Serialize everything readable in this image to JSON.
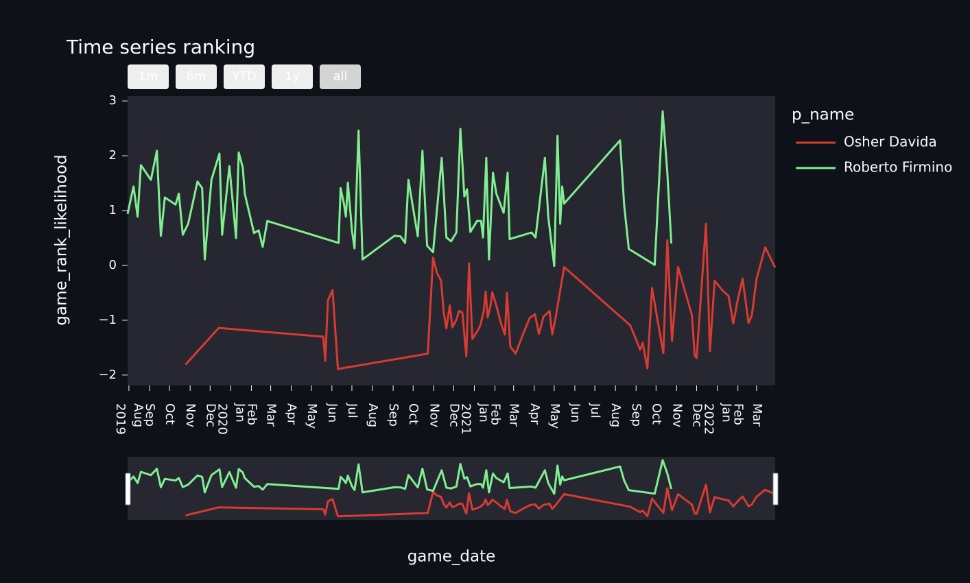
{
  "chart_data": {
    "type": "line",
    "title": "Time series ranking",
    "range_buttons": [
      "1m",
      "6m",
      "YTD",
      "1y",
      "all"
    ],
    "x_label": "game_date",
    "y_label": "game_rank_likelihood",
    "legend_title": "p_name",
    "legend": "right",
    "grid": false,
    "xlim": [
      "2019-07-30",
      "2022-03-29"
    ],
    "ylim": [
      -2.19,
      3.09
    ],
    "yticks": [
      3,
      2,
      1,
      {
        "value": 0,
        "label": "0"
      },
      {
        "value": -1,
        "label": "−1"
      },
      {
        "value": -2,
        "label": "−2"
      }
    ],
    "xticks": [
      {
        "value": "2019-08-01",
        "label": "Aug",
        "year": "2019"
      },
      {
        "value": "2019-09-01",
        "label": "Sep"
      },
      {
        "value": "2019-10-01",
        "label": "Oct"
      },
      {
        "value": "2019-11-01",
        "label": "Nov"
      },
      {
        "value": "2019-12-01",
        "label": "Dec"
      },
      {
        "value": "2020-01-01",
        "label": "Jan",
        "year": "2020"
      },
      {
        "value": "2020-02-01",
        "label": "Feb"
      },
      {
        "value": "2020-03-01",
        "label": "Mar"
      },
      {
        "value": "2020-04-01",
        "label": "Apr"
      },
      {
        "value": "2020-05-01",
        "label": "May"
      },
      {
        "value": "2020-06-01",
        "label": "Jun"
      },
      {
        "value": "2020-07-01",
        "label": "Jul"
      },
      {
        "value": "2020-08-01",
        "label": "Aug"
      },
      {
        "value": "2020-09-01",
        "label": "Sep"
      },
      {
        "value": "2020-10-01",
        "label": "Oct"
      },
      {
        "value": "2020-11-01",
        "label": "Nov"
      },
      {
        "value": "2020-12-01",
        "label": "Dec"
      },
      {
        "value": "2021-01-01",
        "label": "Jan",
        "year": "2021"
      },
      {
        "value": "2021-02-01",
        "label": "Feb"
      },
      {
        "value": "2021-03-01",
        "label": "Mar"
      },
      {
        "value": "2021-04-01",
        "label": "Apr"
      },
      {
        "value": "2021-05-01",
        "label": "May"
      },
      {
        "value": "2021-06-01",
        "label": "Jun"
      },
      {
        "value": "2021-07-01",
        "label": "Jul"
      },
      {
        "value": "2021-08-01",
        "label": "Aug"
      },
      {
        "value": "2021-09-01",
        "label": "Sep"
      },
      {
        "value": "2021-10-01",
        "label": "Oct"
      },
      {
        "value": "2021-11-01",
        "label": "Nov"
      },
      {
        "value": "2021-12-01",
        "label": "Dec"
      },
      {
        "value": "2022-01-01",
        "label": "Jan",
        "year": "2022"
      },
      {
        "value": "2022-02-01",
        "label": "Feb"
      },
      {
        "value": "2022-03-01",
        "label": "Mar"
      }
    ],
    "series": [
      {
        "name": "Osher Davida",
        "color": "#d83b31",
        "x": [
          "2019-10-25",
          "2019-12-14",
          "2020-05-19",
          "2020-05-22",
          "2020-05-26",
          "2020-06-02",
          "2020-06-10",
          "2020-10-23",
          "2020-10-31",
          "2020-11-06",
          "2020-11-12",
          "2020-11-16",
          "2020-11-20",
          "2020-11-25",
          "2020-11-29",
          "2020-12-05",
          "2020-12-09",
          "2020-12-14",
          "2020-12-20",
          "2020-12-24",
          "2020-12-29",
          "2021-01-06",
          "2021-01-10",
          "2021-01-15",
          "2021-01-18",
          "2021-01-21",
          "2021-01-25",
          "2021-01-28",
          "2021-02-04",
          "2021-02-10",
          "2021-02-16",
          "2021-02-19",
          "2021-02-24",
          "2021-03-04",
          "2021-03-14",
          "2021-03-25",
          "2021-04-02",
          "2021-04-08",
          "2021-04-15",
          "2021-04-20",
          "2021-04-24",
          "2021-04-28",
          "2021-05-03",
          "2021-05-16",
          "2021-08-23",
          "2021-09-02",
          "2021-09-07",
          "2021-09-11",
          "2021-09-18",
          "2021-09-25",
          "2021-10-06",
          "2021-10-12",
          "2021-10-18",
          "2021-10-25",
          "2021-11-03",
          "2021-11-24",
          "2021-11-28",
          "2021-12-01",
          "2021-12-15",
          "2021-12-21",
          "2021-12-28",
          "2022-01-09",
          "2022-01-18",
          "2022-01-25",
          "2022-02-01",
          "2022-02-08",
          "2022-02-17",
          "2022-02-22",
          "2022-03-01",
          "2022-03-14",
          "2022-03-29"
        ],
        "values": [
          -1.81,
          -1.14,
          -1.3,
          -1.74,
          -0.64,
          -0.45,
          -1.89,
          -1.61,
          0.14,
          -0.14,
          -0.28,
          -0.85,
          -1.15,
          -0.73,
          -1.13,
          -0.99,
          -0.83,
          -0.86,
          -1.66,
          0.04,
          -1.34,
          -1.19,
          -1.09,
          -0.84,
          -0.48,
          -0.95,
          -0.75,
          -0.49,
          -0.78,
          -1.06,
          -1.26,
          -0.5,
          -1.48,
          -1.61,
          -1.29,
          -0.96,
          -0.89,
          -1.25,
          -0.93,
          -0.88,
          -0.83,
          -1.26,
          -0.96,
          -0.03,
          -1.09,
          -1.38,
          -1.54,
          -1.41,
          -1.88,
          -0.41,
          -1.19,
          -1.6,
          0.46,
          -1.38,
          -0.03,
          -0.91,
          -1.64,
          -1.69,
          0.76,
          -1.56,
          -0.28,
          -0.46,
          -0.56,
          -1.06,
          -0.61,
          -0.24,
          -1.05,
          -0.91,
          -0.25,
          0.33,
          -0.04
        ]
      },
      {
        "name": "Roberto Firmino",
        "color": "#80ef90",
        "x": [
          "2019-07-30",
          "2019-08-08",
          "2019-08-14",
          "2019-08-19",
          "2019-09-03",
          "2019-09-12",
          "2019-09-18",
          "2019-09-24",
          "2019-10-10",
          "2019-10-15",
          "2019-10-21",
          "2019-10-29",
          "2019-11-12",
          "2019-11-19",
          "2019-11-23",
          "2019-12-03",
          "2019-12-15",
          "2019-12-19",
          "2019-12-30",
          "2020-01-09",
          "2020-01-13",
          "2020-01-19",
          "2020-01-22",
          "2020-02-05",
          "2020-02-12",
          "2020-02-18",
          "2020-02-25",
          "2020-06-11",
          "2020-06-14",
          "2020-06-19",
          "2020-06-22",
          "2020-06-25",
          "2020-07-01",
          "2020-07-05",
          "2020-07-11",
          "2020-07-17",
          "2020-09-03",
          "2020-09-12",
          "2020-09-19",
          "2020-09-24",
          "2020-10-08",
          "2020-10-15",
          "2020-10-22",
          "2020-10-31",
          "2020-11-13",
          "2020-11-20",
          "2020-11-27",
          "2020-12-05",
          "2020-12-11",
          "2020-12-17",
          "2020-12-21",
          "2020-12-26",
          "2021-01-05",
          "2021-01-11",
          "2021-01-14",
          "2021-01-19",
          "2021-01-23",
          "2021-01-29",
          "2021-02-03",
          "2021-02-14",
          "2021-02-20",
          "2021-02-23",
          "2021-03-28",
          "2021-04-03",
          "2021-04-17",
          "2021-04-22",
          "2021-05-01",
          "2021-05-06",
          "2021-05-10",
          "2021-05-13",
          "2021-05-16",
          "2021-08-08",
          "2021-08-14",
          "2021-08-21",
          "2021-09-29",
          "2021-10-11",
          "2021-10-18",
          "2021-10-24"
        ],
        "values": [
          0.94,
          1.44,
          0.89,
          1.83,
          1.56,
          2.09,
          0.54,
          1.24,
          1.11,
          1.31,
          0.56,
          0.76,
          1.53,
          1.41,
          0.11,
          1.56,
          2.04,
          0.56,
          1.81,
          0.5,
          2.06,
          1.79,
          1.31,
          0.59,
          0.64,
          0.34,
          0.81,
          0.41,
          1.41,
          1.13,
          0.89,
          1.51,
          0.64,
          0.31,
          2.46,
          0.11,
          0.54,
          0.53,
          0.41,
          1.56,
          0.53,
          2.09,
          0.36,
          0.24,
          1.96,
          0.51,
          0.44,
          0.6,
          2.49,
          1.26,
          1.39,
          0.61,
          0.81,
          0.81,
          0.51,
          1.96,
          0.11,
          1.69,
          1.31,
          0.96,
          1.69,
          0.48,
          0.6,
          0.51,
          1.96,
          0.89,
          -0.01,
          2.36,
          0.76,
          1.44,
          1.13,
          2.28,
          1.11,
          0.3,
          0.01,
          2.81,
          1.69,
          0.4
        ]
      }
    ]
  }
}
